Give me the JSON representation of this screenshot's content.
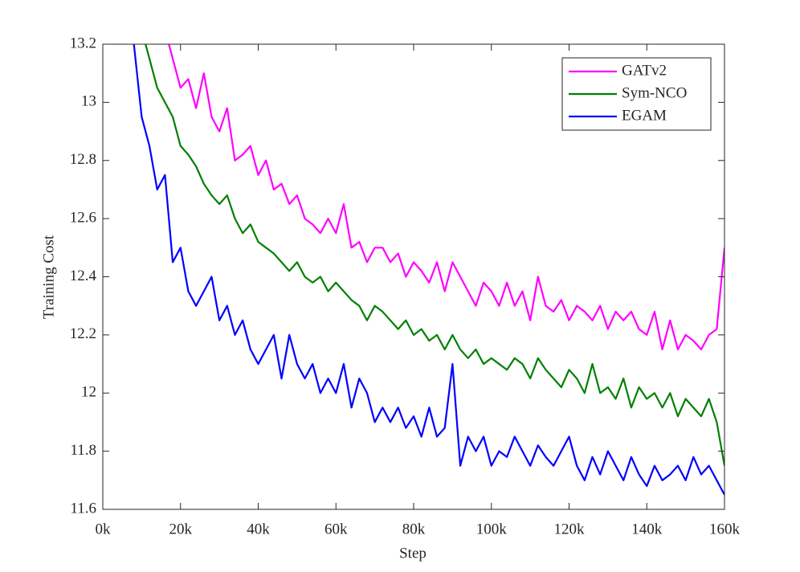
{
  "chart_data": {
    "type": "line",
    "xlabel": "Step",
    "ylabel": "Training Cost",
    "xlim": [
      0,
      160000
    ],
    "xticks": [
      {
        "value": 0,
        "label": "0k"
      },
      {
        "value": 20000,
        "label": "20k"
      },
      {
        "value": 40000,
        "label": "40k"
      },
      {
        "value": 60000,
        "label": "60k"
      },
      {
        "value": 80000,
        "label": "80k"
      },
      {
        "value": 100000,
        "label": "100k"
      },
      {
        "value": 120000,
        "label": "120k"
      },
      {
        "value": 140000,
        "label": "140k"
      },
      {
        "value": 160000,
        "label": "160k"
      }
    ],
    "ylim": [
      11.6,
      13.2
    ],
    "yticks": [
      11.6,
      11.8,
      12,
      12.2,
      12.4,
      12.6,
      12.8,
      13,
      13.2
    ],
    "legend": "top-right",
    "series": [
      {
        "name": "GATv2",
        "color": "#ff00ff",
        "x": [
          16000,
          18000,
          20000,
          22000,
          24000,
          26000,
          28000,
          30000,
          32000,
          34000,
          36000,
          38000,
          40000,
          42000,
          44000,
          46000,
          48000,
          50000,
          52000,
          54000,
          56000,
          58000,
          60000,
          62000,
          64000,
          66000,
          68000,
          70000,
          72000,
          74000,
          76000,
          78000,
          80000,
          82000,
          84000,
          86000,
          88000,
          90000,
          92000,
          94000,
          96000,
          98000,
          100000,
          102000,
          104000,
          106000,
          108000,
          110000,
          112000,
          114000,
          116000,
          118000,
          120000,
          122000,
          124000,
          126000,
          128000,
          130000,
          132000,
          134000,
          136000,
          138000,
          140000,
          142000,
          144000,
          146000,
          148000,
          150000,
          152000,
          154000,
          156000,
          158000,
          160000
        ],
        "values": [
          13.25,
          13.15,
          13.05,
          13.08,
          12.98,
          13.1,
          12.95,
          12.9,
          12.98,
          12.8,
          12.82,
          12.85,
          12.75,
          12.8,
          12.7,
          12.72,
          12.65,
          12.68,
          12.6,
          12.58,
          12.55,
          12.6,
          12.55,
          12.65,
          12.5,
          12.52,
          12.45,
          12.5,
          12.5,
          12.45,
          12.48,
          12.4,
          12.45,
          12.42,
          12.38,
          12.45,
          12.35,
          12.45,
          12.4,
          12.35,
          12.3,
          12.38,
          12.35,
          12.3,
          12.38,
          12.3,
          12.35,
          12.25,
          12.4,
          12.3,
          12.28,
          12.32,
          12.25,
          12.3,
          12.28,
          12.25,
          12.3,
          12.22,
          12.28,
          12.25,
          12.28,
          12.22,
          12.2,
          12.28,
          12.15,
          12.25,
          12.15,
          12.2,
          12.18,
          12.15,
          12.2,
          12.22,
          12.5
        ]
      },
      {
        "name": "Sym-NCO",
        "color": "#008000",
        "x": [
          10000,
          12000,
          14000,
          16000,
          18000,
          20000,
          22000,
          24000,
          26000,
          28000,
          30000,
          32000,
          34000,
          36000,
          38000,
          40000,
          42000,
          44000,
          46000,
          48000,
          50000,
          52000,
          54000,
          56000,
          58000,
          60000,
          62000,
          64000,
          66000,
          68000,
          70000,
          72000,
          74000,
          76000,
          78000,
          80000,
          82000,
          84000,
          86000,
          88000,
          90000,
          92000,
          94000,
          96000,
          98000,
          100000,
          102000,
          104000,
          106000,
          108000,
          110000,
          112000,
          114000,
          116000,
          118000,
          120000,
          122000,
          124000,
          126000,
          128000,
          130000,
          132000,
          134000,
          136000,
          138000,
          140000,
          142000,
          144000,
          146000,
          148000,
          150000,
          152000,
          154000,
          156000,
          158000,
          160000
        ],
        "values": [
          13.25,
          13.15,
          13.05,
          13.0,
          12.95,
          12.85,
          12.82,
          12.78,
          12.72,
          12.68,
          12.65,
          12.68,
          12.6,
          12.55,
          12.58,
          12.52,
          12.5,
          12.48,
          12.45,
          12.42,
          12.45,
          12.4,
          12.38,
          12.4,
          12.35,
          12.38,
          12.35,
          12.32,
          12.3,
          12.25,
          12.3,
          12.28,
          12.25,
          12.22,
          12.25,
          12.2,
          12.22,
          12.18,
          12.2,
          12.15,
          12.2,
          12.15,
          12.12,
          12.15,
          12.1,
          12.12,
          12.1,
          12.08,
          12.12,
          12.1,
          12.05,
          12.12,
          12.08,
          12.05,
          12.02,
          12.08,
          12.05,
          12.0,
          12.1,
          12.0,
          12.02,
          11.98,
          12.05,
          11.95,
          12.02,
          11.98,
          12.0,
          11.95,
          12.0,
          11.92,
          11.98,
          11.95,
          11.92,
          11.98,
          11.9,
          11.75
        ]
      },
      {
        "name": "EGAM",
        "color": "#0000ff",
        "x": [
          8000,
          10000,
          12000,
          14000,
          16000,
          18000,
          20000,
          22000,
          24000,
          26000,
          28000,
          30000,
          32000,
          34000,
          36000,
          38000,
          40000,
          42000,
          44000,
          46000,
          48000,
          50000,
          52000,
          54000,
          56000,
          58000,
          60000,
          62000,
          64000,
          66000,
          68000,
          70000,
          72000,
          74000,
          76000,
          78000,
          80000,
          82000,
          84000,
          86000,
          88000,
          90000,
          92000,
          94000,
          96000,
          98000,
          100000,
          102000,
          104000,
          106000,
          108000,
          110000,
          112000,
          114000,
          116000,
          118000,
          120000,
          122000,
          124000,
          126000,
          128000,
          130000,
          132000,
          134000,
          136000,
          138000,
          140000,
          142000,
          144000,
          146000,
          148000,
          150000,
          152000,
          154000,
          156000,
          158000,
          160000
        ],
        "values": [
          13.2,
          12.95,
          12.85,
          12.7,
          12.75,
          12.45,
          12.5,
          12.35,
          12.3,
          12.35,
          12.4,
          12.25,
          12.3,
          12.2,
          12.25,
          12.15,
          12.1,
          12.15,
          12.2,
          12.05,
          12.2,
          12.1,
          12.05,
          12.1,
          12.0,
          12.05,
          12.0,
          12.1,
          11.95,
          12.05,
          12.0,
          11.9,
          11.95,
          11.9,
          11.95,
          11.88,
          11.92,
          11.85,
          11.95,
          11.85,
          11.88,
          12.1,
          11.75,
          11.85,
          11.8,
          11.85,
          11.75,
          11.8,
          11.78,
          11.85,
          11.8,
          11.75,
          11.82,
          11.78,
          11.75,
          11.8,
          11.85,
          11.75,
          11.7,
          11.78,
          11.72,
          11.8,
          11.75,
          11.7,
          11.78,
          11.72,
          11.68,
          11.75,
          11.7,
          11.72,
          11.75,
          11.7,
          11.78,
          11.72,
          11.75,
          11.7,
          11.65
        ]
      }
    ]
  }
}
